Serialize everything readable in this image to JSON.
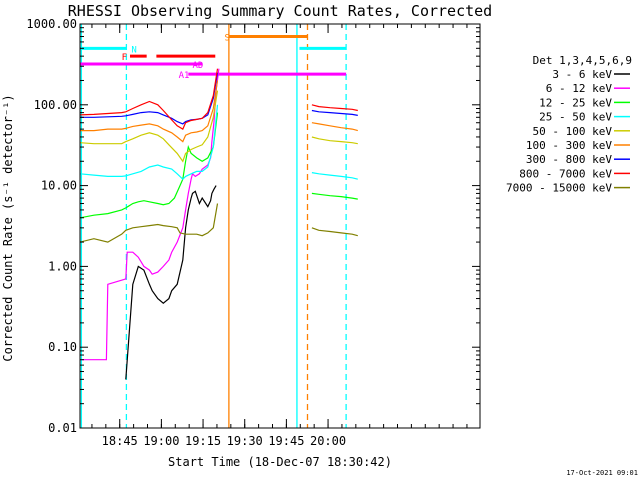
{
  "chart_data": {
    "type": "line",
    "title": "RHESSI Observing Summary Count Rates, Corrected",
    "xlabel": "Start Time (18-Dec-07 18:30:42)",
    "ylabel": "Corrected Count Rate (s⁻¹ detector⁻¹)",
    "y_scale": "log",
    "ylim": [
      0.01,
      1000
    ],
    "xlim_minutes_after_start": [
      0,
      144
    ],
    "x_ticks": [
      {
        "label": "18:45",
        "m": 14.3
      },
      {
        "label": "19:00",
        "m": 29.3
      },
      {
        "label": "19:15",
        "m": 44.3
      },
      {
        "label": "19:30",
        "m": 59.3
      },
      {
        "label": "19:45",
        "m": 74.3
      },
      {
        "label": "20:00",
        "m": 89.3
      }
    ],
    "y_ticks": [
      {
        "label": "1000.00",
        "v": 1000
      },
      {
        "label": "100.00",
        "v": 100
      },
      {
        "label": "10.00",
        "v": 10
      },
      {
        "label": "1.00",
        "v": 1
      },
      {
        "label": "0.10",
        "v": 0.1
      },
      {
        "label": "0.01",
        "v": 0.01
      }
    ],
    "legend_title": "Det 1,3,4,5,6,9",
    "legend_placement": "right",
    "series": [
      {
        "name": "3 - 6 keV",
        "color": "#000000",
        "x": [
          16.5,
          19,
          21,
          23,
          25,
          26,
          28,
          30,
          32,
          33,
          35,
          37,
          38,
          39,
          40,
          40.5,
          41.5,
          43,
          44,
          46,
          47,
          47.5,
          48.2,
          49
        ],
        "y": [
          0.04,
          0.6,
          1.0,
          0.9,
          0.6,
          0.5,
          0.4,
          0.35,
          0.4,
          0.5,
          0.6,
          1.2,
          3.0,
          5.0,
          7.0,
          8.0,
          8.5,
          6.0,
          7.0,
          5.5,
          6.5,
          8.0,
          9.0,
          10.0
        ]
      },
      {
        "name": "6 - 12 keV",
        "color": "#ff00ff",
        "x": [
          0.5,
          5,
          9.5,
          10,
          16.5,
          17,
          19,
          21,
          23,
          25,
          26,
          28,
          30,
          32,
          33,
          35,
          37,
          38,
          39,
          40,
          40.5,
          41.5,
          43,
          44,
          46,
          47,
          47.5,
          48.2,
          49,
          50
        ],
        "y": [
          0.07,
          0.07,
          0.07,
          0.6,
          0.7,
          1.5,
          1.5,
          1.3,
          1.0,
          0.9,
          0.8,
          0.85,
          1.0,
          1.2,
          1.5,
          2.0,
          3.0,
          5.0,
          8.0,
          12,
          14,
          13,
          14,
          16,
          18,
          22,
          35,
          60,
          150,
          280
        ]
      },
      {
        "name": "12 - 25 keV",
        "color": "#00ff00",
        "x": [
          0,
          5,
          10,
          15,
          16.5,
          19,
          21,
          23,
          25,
          28,
          30,
          32,
          34,
          36,
          37,
          38,
          39,
          40,
          42,
          44,
          46,
          48,
          49.5
        ],
        "y": [
          4.0,
          4.3,
          4.5,
          5.0,
          5.3,
          6.0,
          6.3,
          6.5,
          6.3,
          6.0,
          5.8,
          6.0,
          7.0,
          10,
          12,
          20,
          30,
          25,
          22,
          20,
          22,
          30,
          80
        ]
      },
      {
        "name": "25 - 50 keV",
        "color": "#00ffff",
        "x": [
          0,
          5,
          10,
          15,
          16.5,
          19,
          22,
          25,
          28,
          30,
          33,
          35,
          37,
          38,
          40,
          42,
          44,
          46,
          48,
          49.5
        ],
        "y": [
          14,
          13.5,
          13,
          13,
          13.2,
          14,
          15,
          17,
          18,
          17,
          16,
          14,
          12,
          13,
          14,
          15,
          15,
          17,
          30,
          100
        ]
      },
      {
        "name": "50 - 100 keV",
        "color": "#cccc00",
        "x": [
          0,
          5,
          10,
          15,
          16.5,
          19,
          22,
          25,
          28,
          30,
          32,
          35,
          37,
          38,
          40,
          42,
          44,
          46,
          48,
          49.5
        ],
        "y": [
          34,
          33,
          33,
          33,
          35,
          38,
          42,
          45,
          42,
          38,
          32,
          25,
          20,
          25,
          28,
          30,
          32,
          40,
          70,
          150
        ]
      },
      {
        "name": "100 - 300 keV",
        "color": "#ff8000",
        "x": [
          0,
          5,
          10,
          15,
          16.5,
          19,
          22,
          25,
          28,
          30,
          33,
          35,
          37,
          38,
          40,
          42,
          44,
          46,
          48,
          49.5
        ],
        "y": [
          48,
          48,
          50,
          50,
          51,
          54,
          56,
          58,
          55,
          50,
          45,
          40,
          35,
          42,
          45,
          46,
          48,
          55,
          90,
          200
        ]
      },
      {
        "name": "300 - 800 keV",
        "color": "#0000ff",
        "x": [
          0,
          5,
          10,
          15,
          16.5,
          19,
          22,
          25,
          28,
          30,
          33,
          35,
          37,
          38,
          40,
          42,
          44,
          46,
          48,
          49.5
        ],
        "y": [
          70,
          70,
          71,
          72,
          73,
          76,
          80,
          82,
          80,
          75,
          68,
          62,
          58,
          62,
          65,
          66,
          68,
          75,
          120,
          250
        ]
      },
      {
        "name": "800 - 7000 keV",
        "color": "#ff0000",
        "x": [
          0,
          5,
          10,
          15,
          16.5,
          19,
          22,
          25,
          28,
          30,
          33,
          35,
          37,
          38,
          40,
          42,
          44,
          46,
          48,
          49.5
        ],
        "y": [
          75,
          76,
          78,
          80,
          82,
          90,
          100,
          110,
          100,
          85,
          65,
          55,
          50,
          60,
          64,
          66,
          68,
          80,
          130,
          280
        ]
      },
      {
        "name": "7000 - 15000 keV",
        "color": "#808000",
        "x": [
          0,
          5,
          10,
          15,
          16.5,
          19,
          22,
          25,
          28,
          30,
          33,
          35,
          36,
          38,
          40,
          42,
          44,
          46,
          48,
          49.5
        ],
        "y": [
          2.0,
          2.2,
          2.0,
          2.5,
          2.8,
          3.0,
          3.1,
          3.2,
          3.3,
          3.2,
          3.1,
          3.0,
          2.6,
          2.5,
          2.5,
          2.5,
          2.4,
          2.6,
          3.0,
          6.0
        ]
      }
    ],
    "series_after_gap": [
      {
        "name": "3 - 6 keV",
        "color": "#000000",
        "x": [],
        "y": []
      },
      {
        "name": "6 - 12 keV",
        "color": "#ff00ff",
        "x": [],
        "y": []
      },
      {
        "name": "12 - 25 keV",
        "color": "#00ff00",
        "x": [
          83.5,
          86,
          90,
          94,
          98,
          100
        ],
        "y": [
          8.0,
          7.8,
          7.5,
          7.3,
          7.0,
          6.8
        ]
      },
      {
        "name": "25 - 50 keV",
        "color": "#00ffff",
        "x": [
          83.5,
          86,
          90,
          94,
          98,
          100
        ],
        "y": [
          14.5,
          14,
          13.5,
          13,
          12.5,
          12
        ]
      },
      {
        "name": "50 - 100 keV",
        "color": "#cccc00",
        "x": [
          83.5,
          86,
          90,
          94,
          98,
          100
        ],
        "y": [
          40,
          38,
          36,
          35,
          34,
          33
        ]
      },
      {
        "name": "100 - 300 keV",
        "color": "#ff8000",
        "x": [
          83.5,
          86,
          90,
          94,
          98,
          100
        ],
        "y": [
          60,
          58,
          55,
          52,
          50,
          48
        ]
      },
      {
        "name": "300 - 800 keV",
        "color": "#0000ff",
        "x": [
          83.5,
          86,
          90,
          94,
          98,
          100
        ],
        "y": [
          85,
          82,
          80,
          78,
          76,
          74
        ]
      },
      {
        "name": "800 - 7000 keV",
        "color": "#ff0000",
        "x": [
          83.5,
          86,
          90,
          94,
          98,
          100
        ],
        "y": [
          100,
          95,
          92,
          90,
          88,
          85
        ]
      },
      {
        "name": "7000 - 15000 keV",
        "color": "#808000",
        "x": [
          83.5,
          86,
          90,
          94,
          98,
          100
        ],
        "y": [
          3.0,
          2.8,
          2.7,
          2.6,
          2.5,
          2.4
        ]
      }
    ],
    "vertical_lines": [
      {
        "m": 0.5,
        "color": "#00ffff",
        "dash": false
      },
      {
        "m": 16.7,
        "color": "#00ffff",
        "dash": true
      },
      {
        "m": 53.6,
        "color": "#ff8000",
        "dash": false
      },
      {
        "m": 78.1,
        "color": "#00ffff",
        "dash": false
      },
      {
        "m": 81.9,
        "color": "#ff8000",
        "dash": true
      },
      {
        "m": 95.8,
        "color": "#00ffff",
        "dash": true
      }
    ],
    "flag_bars": [
      {
        "label": "N",
        "color": "#00ffff",
        "row_value": 500,
        "segments": [
          [
            0,
            16.7
          ],
          [
            79.0,
            95.8
          ]
        ],
        "label_m": 18.5
      },
      {
        "label": "S",
        "color": "#ff8000",
        "row_value": 700,
        "segments": [
          [
            53.6,
            81.9
          ]
        ],
        "label_m": 52.0
      },
      {
        "label": "F",
        "color": "#ff0000",
        "row_value": 400,
        "segments": [
          [
            18.0,
            24.0
          ],
          [
            27.5,
            48.7
          ]
        ],
        "label_m": 15.0
      },
      {
        "label": "AD",
        "color": "#ff00ff",
        "row_value": 320,
        "segments": [
          [
            0,
            44.0
          ]
        ],
        "label_m": 40.5
      },
      {
        "label": "A1",
        "color": "#ff00ff",
        "row_value": 240,
        "segments": [
          [
            39.0,
            95.8
          ]
        ],
        "label_m": 35.5
      }
    ],
    "grid": false,
    "footer_date": "17-Oct-2021 09:01"
  }
}
